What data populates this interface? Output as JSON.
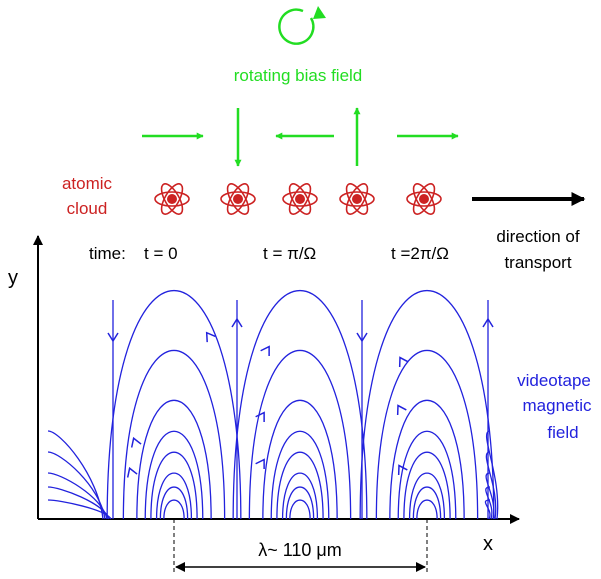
{
  "colors": {
    "bias": "#22dd22",
    "cloud": "#cc2222",
    "field": "#2222dd",
    "axes": "#000000"
  },
  "labels": {
    "bias_field": "rotating bias field",
    "atomic_cloud_line1": "atomic",
    "atomic_cloud_line2": "cloud",
    "time_prefix": "time:",
    "time_0": "t = 0",
    "time_1": "t = π/Ω",
    "time_2": "t =2π/Ω",
    "transport_line1": "direction of",
    "transport_line2": "transport",
    "axis_y": "y",
    "axis_x": "x",
    "videotape_line1": "videotape",
    "videotape_line2": "magnetic",
    "videotape_line3": "field",
    "wavelength": "λ~ 110 μm"
  },
  "bias_arrows": [
    "right",
    "down",
    "left",
    "up",
    "right"
  ],
  "icons": {
    "rotation": "circular-arrow-icon",
    "atom": "atom-icon"
  }
}
